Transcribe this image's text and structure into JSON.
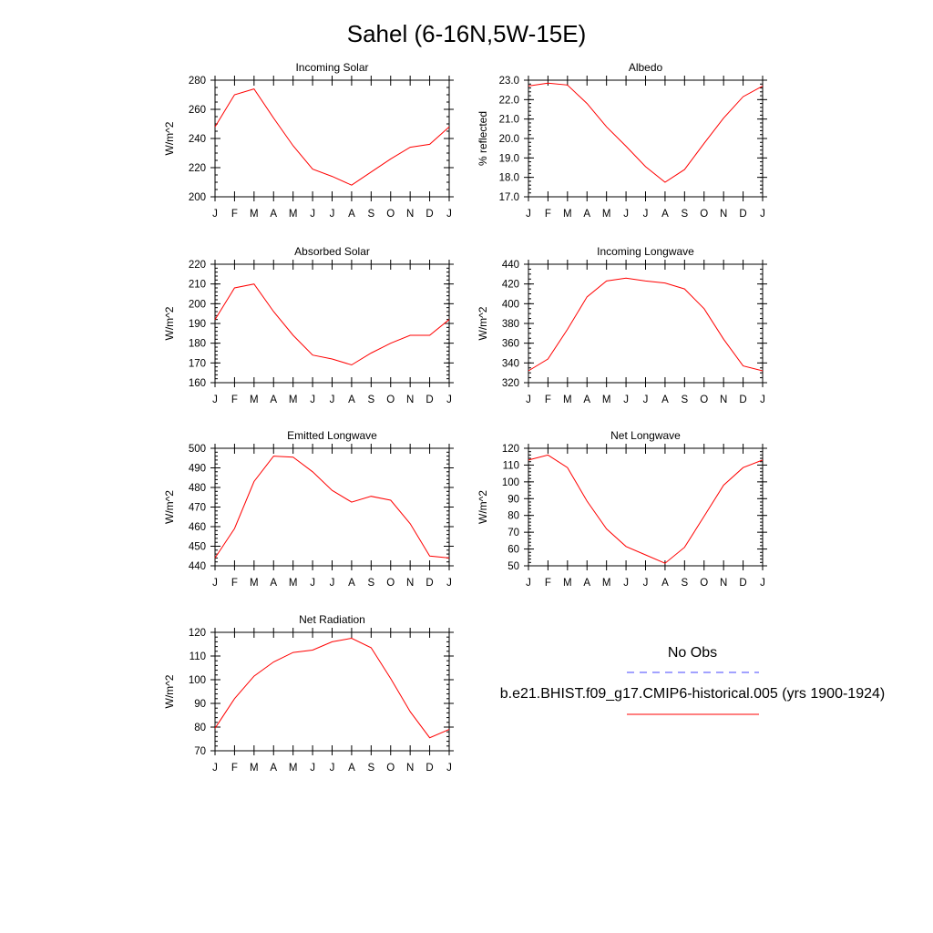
{
  "figure": {
    "title": "Sahel (6-16N,5W-15E)"
  },
  "legend": {
    "items": [
      {
        "label": "No Obs",
        "color": "#4444ff",
        "style": "dashed"
      },
      {
        "label": "b.e21.BHIST.f09_g17.CMIP6-historical.005 (yrs 1900-1924)",
        "color": "#ff0000",
        "style": "solid"
      }
    ]
  },
  "chart_data": [
    {
      "type": "line",
      "title": "Incoming Solar",
      "ylabel": "W/m^2",
      "xlabel": "",
      "categories": [
        "J",
        "F",
        "M",
        "A",
        "M",
        "J",
        "J",
        "A",
        "S",
        "O",
        "N",
        "D",
        "J"
      ],
      "ylim": [
        200,
        280
      ],
      "yticks": [
        200,
        220,
        240,
        260,
        280
      ],
      "ytick_labels": [
        "200",
        "220",
        "240",
        "260",
        "280"
      ],
      "minor_step": 5,
      "series": [
        {
          "name": "b.e21.BHIST.f09_g17.CMIP6-historical.005 (yrs 1900-1924)",
          "color": "#ff0000",
          "values": [
            248,
            270,
            274,
            254,
            235,
            219,
            214,
            208,
            217,
            226,
            234,
            236,
            248
          ]
        }
      ]
    },
    {
      "type": "line",
      "title": "Albedo",
      "ylabel": "% reflected",
      "xlabel": "",
      "categories": [
        "J",
        "F",
        "M",
        "A",
        "M",
        "J",
        "J",
        "A",
        "S",
        "O",
        "N",
        "D",
        "J"
      ],
      "ylim": [
        17.0,
        23.0
      ],
      "yticks": [
        17,
        18,
        19,
        20,
        21,
        22,
        23
      ],
      "ytick_labels": [
        "17.0",
        "18.0",
        "19.0",
        "20.0",
        "21.0",
        "22.0",
        "23.0"
      ],
      "minor_step": 0.2,
      "series": [
        {
          "name": "b.e21.BHIST.f09_g17.CMIP6-historical.005 (yrs 1900-1924)",
          "color": "#ff0000",
          "values": [
            22.7,
            22.85,
            22.75,
            21.8,
            20.6,
            19.6,
            18.55,
            17.75,
            18.4,
            19.75,
            21.05,
            22.15,
            22.7
          ]
        }
      ]
    },
    {
      "type": "line",
      "title": "Absorbed Solar",
      "ylabel": "W/m^2",
      "xlabel": "",
      "categories": [
        "J",
        "F",
        "M",
        "A",
        "M",
        "J",
        "J",
        "A",
        "S",
        "O",
        "N",
        "D",
        "J"
      ],
      "ylim": [
        160,
        220
      ],
      "yticks": [
        160,
        170,
        180,
        190,
        200,
        210,
        220
      ],
      "ytick_labels": [
        "160",
        "170",
        "180",
        "190",
        "200",
        "210",
        "220"
      ],
      "minor_step": 2,
      "series": [
        {
          "name": "b.e21.BHIST.f09_g17.CMIP6-historical.005 (yrs 1900-1924)",
          "color": "#ff0000",
          "values": [
            192,
            208,
            210,
            196,
            184,
            174,
            172,
            169,
            175,
            180,
            184,
            184,
            192
          ]
        }
      ]
    },
    {
      "type": "line",
      "title": "Incoming Longwave",
      "ylabel": "W/m^2",
      "xlabel": "",
      "categories": [
        "J",
        "F",
        "M",
        "A",
        "M",
        "J",
        "J",
        "A",
        "S",
        "O",
        "N",
        "D",
        "J"
      ],
      "ylim": [
        320,
        440
      ],
      "yticks": [
        320,
        340,
        360,
        380,
        400,
        420,
        440
      ],
      "ytick_labels": [
        "320",
        "340",
        "360",
        "380",
        "400",
        "420",
        "440"
      ],
      "minor_step": 5,
      "series": [
        {
          "name": "b.e21.BHIST.f09_g17.CMIP6-historical.005 (yrs 1900-1924)",
          "color": "#ff0000",
          "values": [
            332,
            344,
            374,
            407,
            423,
            426,
            423,
            421,
            415,
            395,
            364,
            337,
            332
          ]
        }
      ]
    },
    {
      "type": "line",
      "title": "Emitted Longwave",
      "ylabel": "W/m^2",
      "xlabel": "",
      "categories": [
        "J",
        "F",
        "M",
        "A",
        "M",
        "J",
        "J",
        "A",
        "S",
        "O",
        "N",
        "D",
        "J"
      ],
      "ylim": [
        440,
        500
      ],
      "yticks": [
        440,
        450,
        460,
        470,
        480,
        490,
        500
      ],
      "ytick_labels": [
        "440",
        "450",
        "460",
        "470",
        "480",
        "490",
        "500"
      ],
      "minor_step": 2,
      "series": [
        {
          "name": "b.e21.BHIST.f09_g17.CMIP6-historical.005 (yrs 1900-1924)",
          "color": "#ff0000",
          "values": [
            444,
            459,
            483,
            496,
            495.5,
            488,
            478.5,
            472.5,
            475.5,
            473.5,
            461.5,
            445,
            444
          ]
        }
      ]
    },
    {
      "type": "line",
      "title": "Net Longwave",
      "ylabel": "W/m^2",
      "xlabel": "",
      "categories": [
        "J",
        "F",
        "M",
        "A",
        "M",
        "J",
        "J",
        "A",
        "S",
        "O",
        "N",
        "D",
        "J"
      ],
      "ylim": [
        50,
        120
      ],
      "yticks": [
        50,
        60,
        70,
        80,
        90,
        100,
        110,
        120
      ],
      "ytick_labels": [
        "50",
        "60",
        "70",
        "80",
        "90",
        "100",
        "110",
        "120"
      ],
      "minor_step": 2,
      "series": [
        {
          "name": "b.e21.BHIST.f09_g17.CMIP6-historical.005 (yrs 1900-1924)",
          "color": "#ff0000",
          "values": [
            113,
            116,
            108.5,
            88.5,
            72,
            61.5,
            56.5,
            51.5,
            61,
            79.5,
            98,
            108.5,
            113
          ]
        }
      ]
    },
    {
      "type": "line",
      "title": "Net Radiation",
      "ylabel": "W/m^2",
      "xlabel": "",
      "categories": [
        "J",
        "F",
        "M",
        "A",
        "M",
        "J",
        "J",
        "A",
        "S",
        "O",
        "N",
        "D",
        "J"
      ],
      "ylim": [
        70,
        120
      ],
      "yticks": [
        70,
        80,
        90,
        100,
        110,
        120
      ],
      "ytick_labels": [
        "70",
        "80",
        "90",
        "100",
        "110",
        "120"
      ],
      "minor_step": 2,
      "series": [
        {
          "name": "b.e21.BHIST.f09_g17.CMIP6-historical.005 (yrs 1900-1924)",
          "color": "#ff0000",
          "values": [
            79.5,
            92,
            101.5,
            107.5,
            111.5,
            112.5,
            116,
            117.5,
            113.5,
            100.5,
            86.5,
            75.5,
            79
          ]
        }
      ]
    }
  ]
}
